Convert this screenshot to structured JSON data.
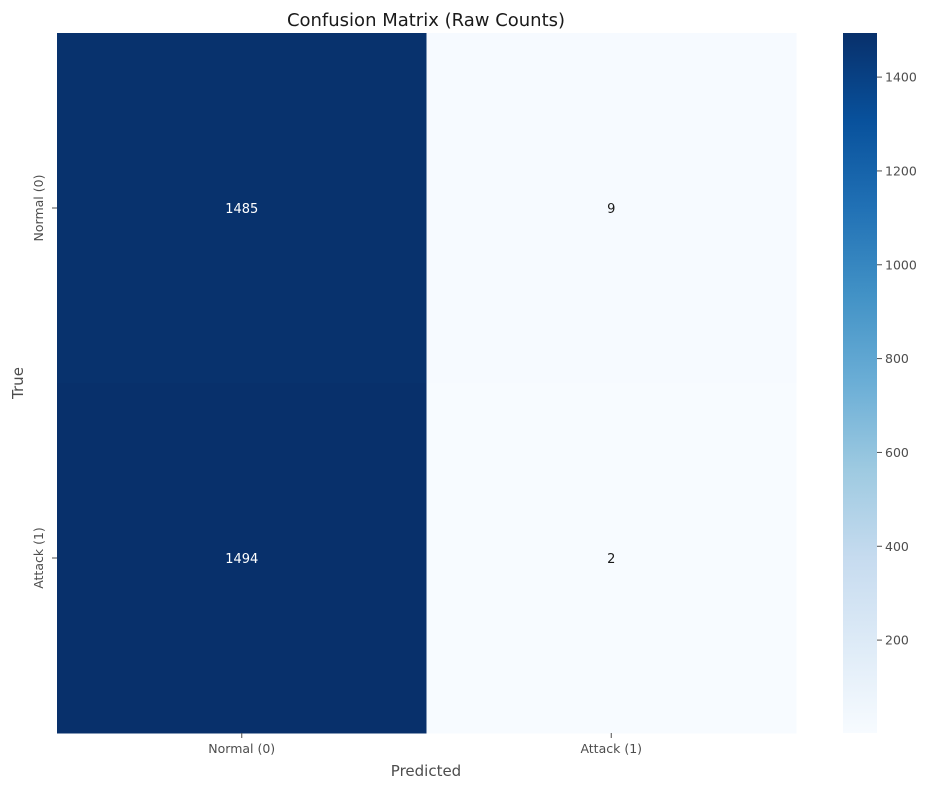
{
  "chart_data": {
    "type": "heatmap",
    "title": "Confusion Matrix (Raw Counts)",
    "xlabel": "Predicted",
    "ylabel": "True",
    "x_categories": [
      "Normal (0)",
      "Attack (1)"
    ],
    "y_categories": [
      "Normal (0)",
      "Attack (1)"
    ],
    "values": [
      [
        1485,
        9
      ],
      [
        1494,
        2
      ]
    ],
    "colormap": "Blues",
    "color_range": [
      2,
      1494
    ],
    "colorbar_ticks": [
      200,
      400,
      600,
      800,
      1000,
      1200,
      1400
    ],
    "grid": false
  }
}
